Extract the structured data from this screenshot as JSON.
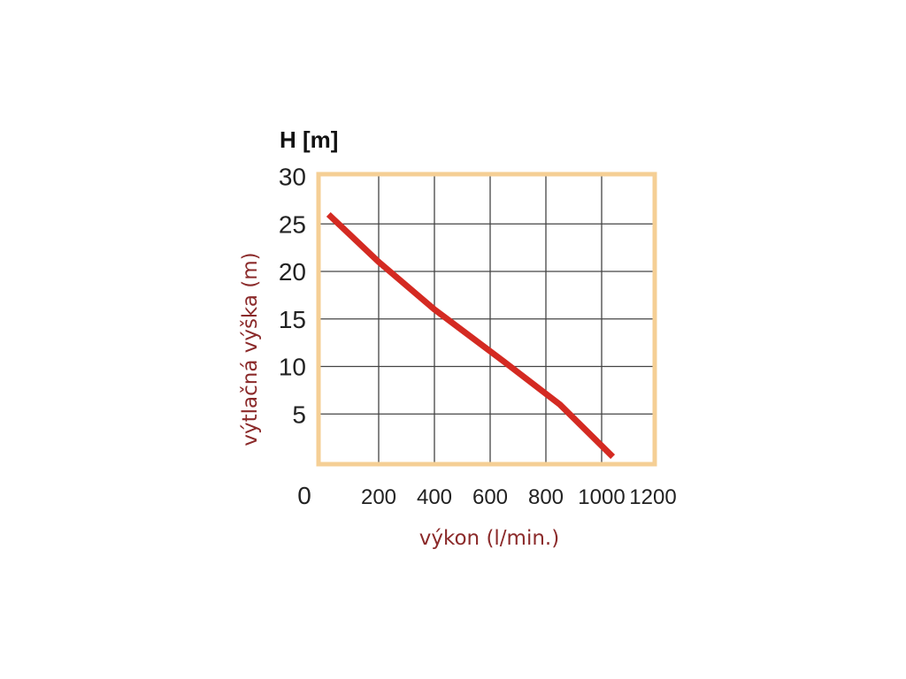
{
  "chart_data": {
    "type": "line",
    "y_unit_label": "H [m]",
    "xlabel": "výkon (l/min.)",
    "ylabel": "výtlačná výška (m)",
    "x_ticks": [
      "0",
      "200",
      "400",
      "600",
      "800",
      "1000",
      "1200"
    ],
    "y_ticks": [
      "30",
      "25",
      "20",
      "15",
      "10",
      "5"
    ],
    "xlim": [
      0,
      1200
    ],
    "ylim": [
      0,
      30
    ],
    "grid": true,
    "colors": {
      "line": "#d42a22",
      "frame": "#f5cf95",
      "grid": "#444444",
      "axis_title": "#8b2a2a"
    },
    "series": [
      {
        "x": [
          20,
          200,
          400,
          650,
          850,
          1040
        ],
        "y": [
          26,
          21,
          16,
          10.5,
          6,
          0.5
        ]
      }
    ]
  }
}
